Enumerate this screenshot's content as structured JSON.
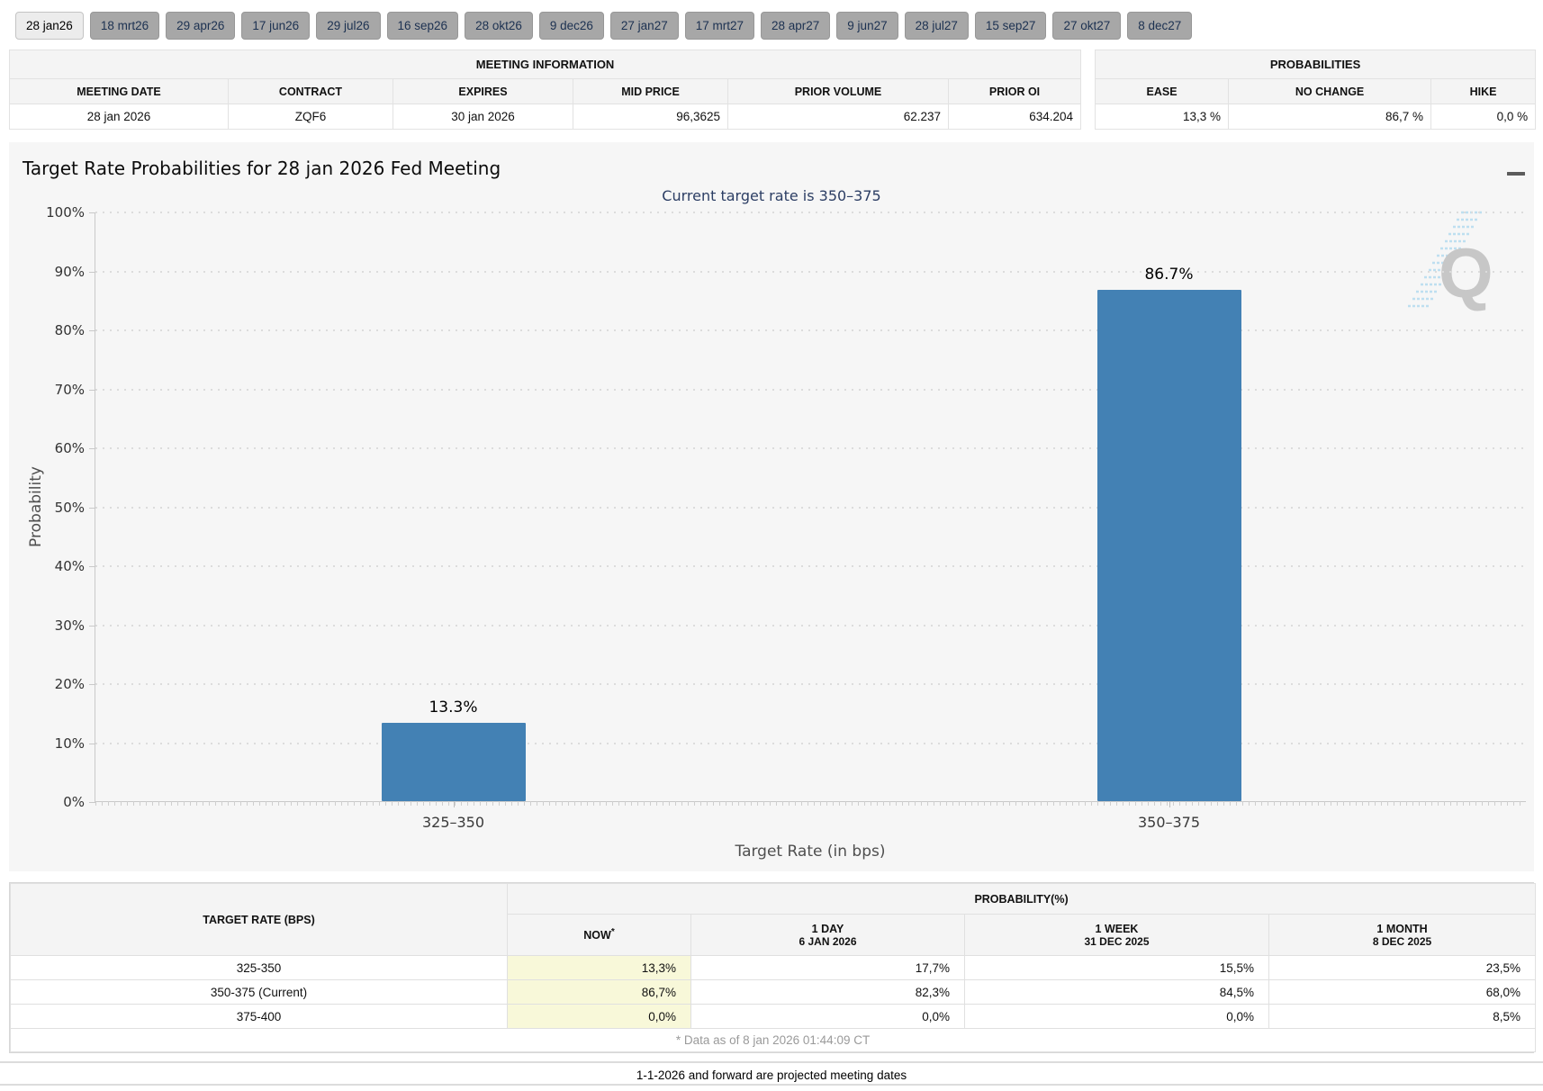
{
  "tabs": {
    "items": [
      {
        "label": "28 jan26",
        "selected": true
      },
      {
        "label": "18 mrt26"
      },
      {
        "label": "29 apr26"
      },
      {
        "label": "17 jun26"
      },
      {
        "label": "29 jul26"
      },
      {
        "label": "16 sep26"
      },
      {
        "label": "28 okt26"
      },
      {
        "label": "9 dec26"
      },
      {
        "label": "27 jan27"
      },
      {
        "label": "17 mrt27"
      },
      {
        "label": "28 apr27"
      },
      {
        "label": "9 jun27"
      },
      {
        "label": "28 jul27"
      },
      {
        "label": "15 sep27"
      },
      {
        "label": "27 okt27"
      },
      {
        "label": "8 dec27"
      }
    ]
  },
  "meeting_info": {
    "title": "MEETING INFORMATION",
    "columns": [
      "MEETING DATE",
      "CONTRACT",
      "EXPIRES",
      "MID PRICE",
      "PRIOR VOLUME",
      "PRIOR OI"
    ],
    "row": {
      "meeting_date": "28 jan 2026",
      "contract": "ZQF6",
      "expires": "30 jan 2026",
      "mid_price": "96,3625",
      "prior_volume": "62.237",
      "prior_oi": "634.204"
    }
  },
  "probabilities_summary": {
    "title": "PROBABILITIES",
    "columns": [
      "EASE",
      "NO CHANGE",
      "HIKE"
    ],
    "row": {
      "ease": "13,3 %",
      "no_change": "86,7 %",
      "hike": "0,0 %"
    }
  },
  "chart": {
    "menu_icon": "hamburger-menu-icon",
    "watermark_letter": "Q"
  },
  "chart_data": {
    "type": "bar",
    "title": "Target Rate Probabilities for 28 jan 2026 Fed Meeting",
    "subtitle": "Current target rate is 350–375",
    "categories": [
      "325–350",
      "350–375"
    ],
    "values": [
      13.3,
      86.7
    ],
    "data_labels": [
      "13.3%",
      "86.7%"
    ],
    "xlabel": "Target Rate (in bps)",
    "ylabel": "Probability",
    "ylim": [
      0,
      100
    ],
    "ytick_step": 10,
    "ytick_suffix": "%",
    "grid": "dotted-horizontal",
    "legend": "none",
    "bar_color": "#4381b4"
  },
  "prob_table": {
    "col1_header": "TARGET RATE (BPS)",
    "group_header": "PROBABILITY(%)",
    "columns": [
      {
        "line1": "NOW",
        "asterisk": "*",
        "line2": ""
      },
      {
        "line1": "1 DAY",
        "line2": "6 JAN 2026"
      },
      {
        "line1": "1 WEEK",
        "line2": "31 DEC 2025"
      },
      {
        "line1": "1 MONTH",
        "line2": "8 DEC 2025"
      }
    ],
    "rows": [
      {
        "rate": "325-350",
        "now": "13,3%",
        "day": "17,7%",
        "week": "15,5%",
        "month": "23,5%"
      },
      {
        "rate": "350-375 (Current)",
        "now": "86,7%",
        "day": "82,3%",
        "week": "84,5%",
        "month": "68,0%"
      },
      {
        "rate": "375-400",
        "now": "0,0%",
        "day": "0,0%",
        "week": "0,0%",
        "month": "8,5%"
      }
    ],
    "footnote": "* Data as of 8 jan 2026 01:44:09 CT"
  },
  "footer_note": "1-1-2026 and forward are projected meeting dates",
  "colors": {
    "bar": "#4381b4",
    "now_column_highlight": "#f8f8d9",
    "chart_background": "#f6f6f6",
    "subtitle_text": "#2c3e64",
    "tab_inactive_bg": "#a7a7a7",
    "tab_active_bg": "#ececec",
    "tab_text": "#1c3151"
  }
}
